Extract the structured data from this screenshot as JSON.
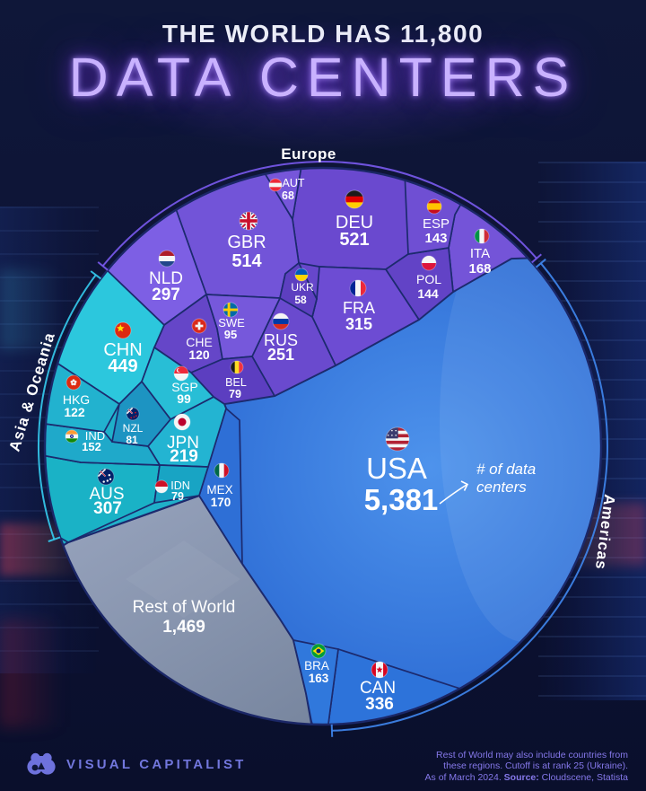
{
  "header": {
    "line1": "THE WORLD HAS 11,800",
    "line2": "DATA CENTERS"
  },
  "chart_data": {
    "type": "voronoi-circle",
    "title": "The World Has 11,800 Data Centers",
    "total": 11800,
    "unit": "data centers",
    "regions": [
      {
        "name": "Europe",
        "color": "#8a68f5"
      },
      {
        "name": "Asia & Oceania",
        "color": "#3ad1ea"
      },
      {
        "name": "Americas",
        "color": "#4a8df2"
      }
    ],
    "items": [
      {
        "code": "USA",
        "value": 5381,
        "display": "5,381",
        "flag": "usa",
        "region": "Americas"
      },
      {
        "code": "CAN",
        "value": 336,
        "display": "336",
        "flag": "can",
        "region": "Americas"
      },
      {
        "code": "MEX",
        "value": 170,
        "display": "170",
        "flag": "mex",
        "region": "Americas"
      },
      {
        "code": "BRA",
        "value": 163,
        "display": "163",
        "flag": "bra",
        "region": "Americas"
      },
      {
        "code": "DEU",
        "value": 521,
        "display": "521",
        "flag": "deu",
        "region": "Europe"
      },
      {
        "code": "GBR",
        "value": 514,
        "display": "514",
        "flag": "gbr",
        "region": "Europe"
      },
      {
        "code": "FRA",
        "value": 315,
        "display": "315",
        "flag": "fra",
        "region": "Europe"
      },
      {
        "code": "NLD",
        "value": 297,
        "display": "297",
        "flag": "nld",
        "region": "Europe"
      },
      {
        "code": "RUS",
        "value": 251,
        "display": "251",
        "flag": "rus",
        "region": "Europe"
      },
      {
        "code": "ITA",
        "value": 168,
        "display": "168",
        "flag": "ita",
        "region": "Europe"
      },
      {
        "code": "POL",
        "value": 144,
        "display": "144",
        "flag": "pol",
        "region": "Europe"
      },
      {
        "code": "ESP",
        "value": 143,
        "display": "143",
        "flag": "esp",
        "region": "Europe"
      },
      {
        "code": "CHE",
        "value": 120,
        "display": "120",
        "flag": "che",
        "region": "Europe"
      },
      {
        "code": "SWE",
        "value": 95,
        "display": "95",
        "flag": "swe",
        "region": "Europe"
      },
      {
        "code": "BEL",
        "value": 79,
        "display": "79",
        "flag": "bel",
        "region": "Europe"
      },
      {
        "code": "AUT",
        "value": 68,
        "display": "68",
        "flag": "aut",
        "region": "Europe"
      },
      {
        "code": "UKR",
        "value": 58,
        "display": "58",
        "flag": "ukr",
        "region": "Europe"
      },
      {
        "code": "CHN",
        "value": 449,
        "display": "449",
        "flag": "chn",
        "region": "Asia & Oceania"
      },
      {
        "code": "AUS",
        "value": 307,
        "display": "307",
        "flag": "aus",
        "region": "Asia & Oceania"
      },
      {
        "code": "JPN",
        "value": 219,
        "display": "219",
        "flag": "jpn",
        "region": "Asia & Oceania"
      },
      {
        "code": "IND",
        "value": 152,
        "display": "152",
        "flag": "ind",
        "region": "Asia & Oceania"
      },
      {
        "code": "HKG",
        "value": 122,
        "display": "122",
        "flag": "hkg",
        "region": "Asia & Oceania"
      },
      {
        "code": "SGP",
        "value": 99,
        "display": "99",
        "flag": "sgp",
        "region": "Asia & Oceania"
      },
      {
        "code": "NZL",
        "value": 81,
        "display": "81",
        "flag": "nzl",
        "region": "Asia & Oceania"
      },
      {
        "code": "IDN",
        "value": 79,
        "display": "79",
        "flag": "idn",
        "region": "Asia & Oceania"
      }
    ],
    "rest_of_world": {
      "label": "Rest of World",
      "value": 1469,
      "display": "1,469"
    },
    "annotation": {
      "line1": "# of data",
      "line2": "centers"
    }
  },
  "colors": {
    "background": "#0d1335",
    "europe_purple": "#6a49cf",
    "asia_teal": "#23b8d2",
    "americas_blue": "#3379dd",
    "rest_gray": "#8c99b4",
    "cell_border": "#1c2a6e",
    "neon": "#c9b2ff"
  },
  "footer": {
    "brand": "VISUAL CAPITALIST",
    "note_line1": "Rest of World may also include countries from",
    "note_line2": "these regions. Cutoff is at rank 25 (Ukraine).",
    "note_line3_prefix": "As of March 2024. ",
    "note_source_label": "Source:",
    "note_source": " Cloudscene, Statista"
  }
}
